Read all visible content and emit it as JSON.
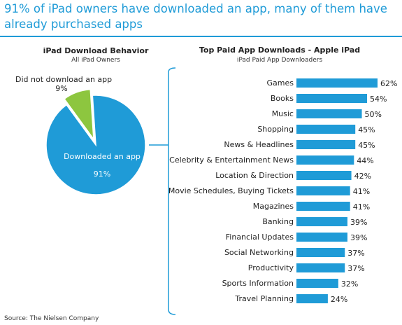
{
  "headline": "91% of iPad owners have downloaded an app, many of them have already purchased apps",
  "source": "Source: The Nielsen Company",
  "colors": {
    "accent": "#1f9bd7",
    "bar": "#1f9bd7",
    "pie_main": "#1f9bd7",
    "pie_minor": "#8dc63f"
  },
  "chart_data": [
    {
      "type": "pie",
      "title": "iPad Download Behavior",
      "subtitle": "All iPad Owners",
      "slices": [
        {
          "label": "Downloaded an app",
          "value": 91,
          "value_label": "91%"
        },
        {
          "label": "Did not download an app",
          "value": 9,
          "value_label": "9%"
        }
      ]
    },
    {
      "type": "bar",
      "orientation": "horizontal",
      "title": "Top Paid App Downloads - Apple iPad",
      "subtitle": "iPad Paid App Downloaders",
      "xlim": [
        0,
        62
      ],
      "categories": [
        "Games",
        "Books",
        "Music",
        "Shopping",
        "News & Headlines",
        "Celebrity & Entertainment News",
        "Location & Direction",
        "Movie Schedules, Buying Tickets",
        "Magazines",
        "Banking",
        "Financial Updates",
        "Social Networking",
        "Productivity",
        "Sports Information",
        "Travel Planning"
      ],
      "values": [
        62,
        54,
        50,
        45,
        45,
        44,
        42,
        41,
        41,
        39,
        39,
        37,
        37,
        32,
        24
      ],
      "value_suffix": "%"
    }
  ]
}
